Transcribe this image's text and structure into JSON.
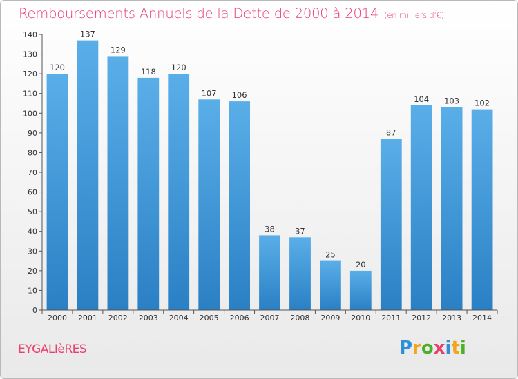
{
  "header": {
    "title": "Remboursements Annuels de la Dette de 2000 à 2014",
    "subtitle": "(en milliers d'€)"
  },
  "footer": {
    "commune": "EYGALIèRES",
    "logo_letters": [
      "P",
      "r",
      "o",
      "x",
      "i",
      "t",
      "i"
    ],
    "logo_colors": [
      "#2f8fd8",
      "#f2a51a",
      "#4caf2a",
      "#e83f6f",
      "#2f8fd8",
      "#f2a51a",
      "#4caf2a"
    ]
  },
  "colors": {
    "bar_top": "#5aaee8",
    "bar_bottom": "#2a80c4",
    "title": "#e83f6f"
  },
  "chart_data": {
    "type": "bar",
    "categories": [
      "2000",
      "2001",
      "2002",
      "2003",
      "2004",
      "2005",
      "2006",
      "2007",
      "2008",
      "2009",
      "2010",
      "2011",
      "2012",
      "2013",
      "2014"
    ],
    "values": [
      120,
      137,
      129,
      118,
      120,
      107,
      106,
      38,
      37,
      25,
      20,
      87,
      104,
      103,
      102
    ],
    "title": "Remboursements Annuels de la Dette de 2000 à 2014",
    "subtitle": "(en milliers d'€)",
    "xlabel": "",
    "ylabel": "",
    "ylim": [
      0,
      140
    ],
    "yticks": [
      0,
      10,
      20,
      30,
      40,
      50,
      60,
      70,
      80,
      90,
      100,
      110,
      120,
      130,
      140
    ],
    "grid": false,
    "legend": "none"
  }
}
